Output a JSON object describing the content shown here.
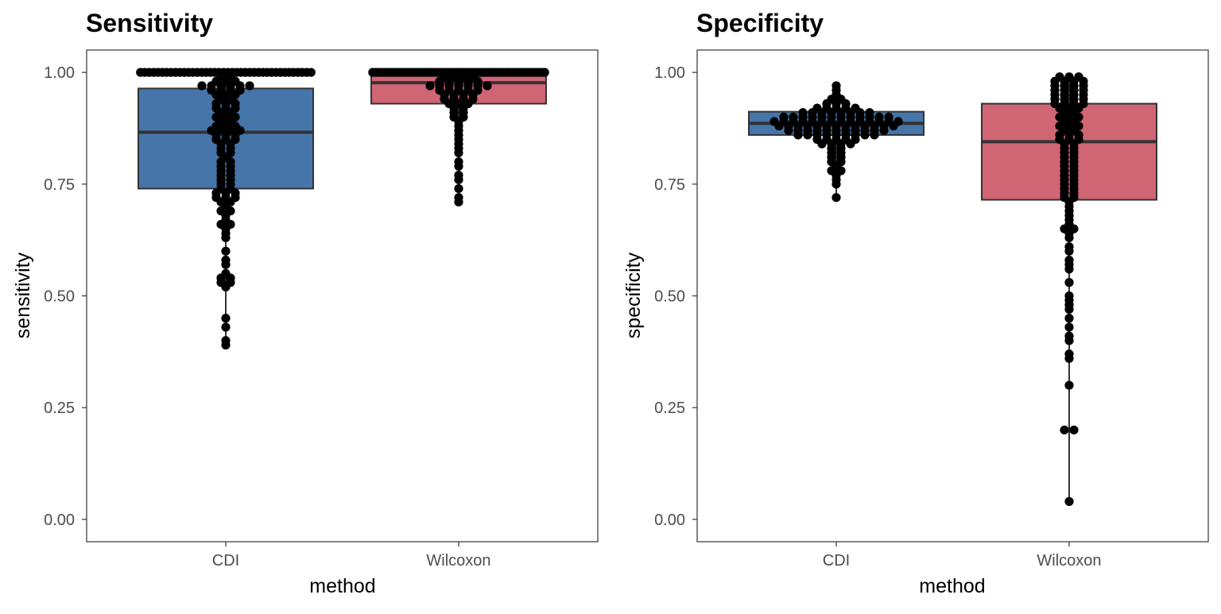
{
  "chart_data": [
    {
      "type": "box",
      "title": "Sensitivity",
      "xlabel": "method",
      "ylabel": "sensitivity",
      "ylim": [
        -0.05,
        1.05
      ],
      "yticks": [
        "0.00",
        "0.25",
        "0.50",
        "0.75",
        "1.00"
      ],
      "ytick_values": [
        0,
        0.25,
        0.5,
        0.75,
        1.0
      ],
      "categories": [
        "CDI",
        "Wilcoxon"
      ],
      "grid": false,
      "series": [
        {
          "category": "CDI",
          "color": "#4575a9",
          "box": {
            "lower_whisker": 0.39,
            "q1": 0.74,
            "median": 0.866,
            "q3": 0.964,
            "upper_whisker": 1.0
          },
          "points": [
            1,
            1,
            1,
            1,
            1,
            1,
            1,
            1,
            1,
            1,
            1,
            1,
            1,
            1,
            1,
            1,
            1,
            1,
            1,
            1,
            1,
            1,
            1,
            1,
            1,
            1,
            1,
            1,
            1,
            1,
            1,
            1,
            1,
            1,
            1,
            1,
            1,
            1,
            1,
            1,
            0.99,
            0.99,
            0.98,
            0.98,
            0.98,
            0.97,
            0.97,
            0.97,
            0.97,
            0.97,
            0.97,
            0.96,
            0.96,
            0.96,
            0.96,
            0.95,
            0.95,
            0.95,
            0.94,
            0.94,
            0.93,
            0.93,
            0.93,
            0.92,
            0.92,
            0.92,
            0.91,
            0.91,
            0.9,
            0.9,
            0.9,
            0.89,
            0.89,
            0.88,
            0.88,
            0.88,
            0.87,
            0.87,
            0.87,
            0.87,
            0.86,
            0.86,
            0.86,
            0.85,
            0.85,
            0.85,
            0.84,
            0.84,
            0.83,
            0.83,
            0.82,
            0.82,
            0.81,
            0.8,
            0.8,
            0.79,
            0.79,
            0.78,
            0.78,
            0.77,
            0.77,
            0.76,
            0.76,
            0.75,
            0.75,
            0.74,
            0.74,
            0.73,
            0.73,
            0.73,
            0.72,
            0.72,
            0.72,
            0.71,
            0.71,
            0.7,
            0.69,
            0.69,
            0.68,
            0.67,
            0.66,
            0.66,
            0.65,
            0.64,
            0.63,
            0.6,
            0.58,
            0.57,
            0.55,
            0.54,
            0.54,
            0.53,
            0.53,
            0.52,
            0.45,
            0.43,
            0.4,
            0.39
          ]
        },
        {
          "category": "Wilcoxon",
          "color": "#d06574",
          "box": {
            "lower_whisker": 0.71,
            "q1": 0.93,
            "median": 0.977,
            "q3": 1.0,
            "upper_whisker": 1.0
          },
          "points": [
            1,
            1,
            1,
            1,
            1,
            1,
            1,
            1,
            1,
            1,
            1,
            1,
            1,
            1,
            1,
            1,
            1,
            1,
            1,
            1,
            1,
            1,
            1,
            1,
            1,
            1,
            1,
            1,
            1,
            1,
            1,
            1,
            1,
            1,
            1,
            1,
            1,
            1,
            1,
            1,
            1,
            1,
            1,
            1,
            1,
            1,
            1,
            1,
            1,
            1,
            1,
            1,
            1,
            1,
            1,
            1,
            1,
            1,
            1,
            1,
            0.99,
            0.99,
            0.99,
            0.99,
            0.98,
            0.98,
            0.98,
            0.98,
            0.98,
            0.97,
            0.97,
            0.97,
            0.97,
            0.97,
            0.97,
            0.97,
            0.96,
            0.96,
            0.96,
            0.96,
            0.96,
            0.95,
            0.95,
            0.95,
            0.95,
            0.94,
            0.94,
            0.94,
            0.94,
            0.93,
            0.93,
            0.93,
            0.92,
            0.92,
            0.91,
            0.91,
            0.9,
            0.9,
            0.89,
            0.88,
            0.87,
            0.86,
            0.85,
            0.84,
            0.83,
            0.82,
            0.8,
            0.79,
            0.77,
            0.76,
            0.74,
            0.72,
            0.71
          ]
        }
      ]
    },
    {
      "type": "box",
      "title": "Specificity",
      "xlabel": "method",
      "ylabel": "specificity",
      "ylim": [
        -0.05,
        1.05
      ],
      "yticks": [
        "0.00",
        "0.25",
        "0.50",
        "0.75",
        "1.00"
      ],
      "ytick_values": [
        0,
        0.25,
        0.5,
        0.75,
        1.0
      ],
      "categories": [
        "CDI",
        "Wilcoxon"
      ],
      "grid": false,
      "series": [
        {
          "category": "CDI",
          "color": "#4575a9",
          "box": {
            "lower_whisker": 0.72,
            "q1": 0.86,
            "median": 0.886,
            "q3": 0.912,
            "upper_whisker": 0.97
          },
          "points": [
            0.97,
            0.96,
            0.95,
            0.94,
            0.94,
            0.93,
            0.93,
            0.93,
            0.92,
            0.92,
            0.92,
            0.92,
            0.92,
            0.91,
            0.91,
            0.91,
            0.91,
            0.91,
            0.91,
            0.91,
            0.91,
            0.9,
            0.9,
            0.9,
            0.9,
            0.9,
            0.9,
            0.9,
            0.9,
            0.9,
            0.9,
            0.9,
            0.9,
            0.89,
            0.89,
            0.89,
            0.89,
            0.89,
            0.89,
            0.89,
            0.89,
            0.89,
            0.89,
            0.89,
            0.89,
            0.89,
            0.89,
            0.88,
            0.88,
            0.88,
            0.88,
            0.88,
            0.88,
            0.88,
            0.88,
            0.88,
            0.88,
            0.88,
            0.88,
            0.88,
            0.87,
            0.87,
            0.87,
            0.87,
            0.87,
            0.87,
            0.87,
            0.87,
            0.87,
            0.87,
            0.87,
            0.86,
            0.86,
            0.86,
            0.86,
            0.86,
            0.86,
            0.86,
            0.86,
            0.86,
            0.85,
            0.85,
            0.85,
            0.85,
            0.85,
            0.84,
            0.84,
            0.84,
            0.84,
            0.83,
            0.83,
            0.82,
            0.82,
            0.81,
            0.81,
            0.8,
            0.8,
            0.79,
            0.78,
            0.78,
            0.77,
            0.76,
            0.75,
            0.72
          ]
        },
        {
          "category": "Wilcoxon",
          "color": "#d06574",
          "box": {
            "lower_whisker": 0.04,
            "q1": 0.715,
            "median": 0.845,
            "q3": 0.93,
            "upper_whisker": 0.99
          },
          "points": [
            0.99,
            0.99,
            0.99,
            0.98,
            0.98,
            0.98,
            0.98,
            0.97,
            0.97,
            0.97,
            0.97,
            0.96,
            0.96,
            0.96,
            0.96,
            0.95,
            0.95,
            0.95,
            0.95,
            0.94,
            0.94,
            0.94,
            0.94,
            0.93,
            0.93,
            0.93,
            0.93,
            0.92,
            0.92,
            0.92,
            0.91,
            0.91,
            0.9,
            0.9,
            0.9,
            0.89,
            0.89,
            0.88,
            0.88,
            0.88,
            0.87,
            0.87,
            0.86,
            0.86,
            0.86,
            0.85,
            0.85,
            0.85,
            0.84,
            0.84,
            0.83,
            0.83,
            0.82,
            0.82,
            0.81,
            0.81,
            0.8,
            0.8,
            0.79,
            0.79,
            0.78,
            0.78,
            0.77,
            0.77,
            0.76,
            0.76,
            0.75,
            0.75,
            0.74,
            0.74,
            0.73,
            0.73,
            0.72,
            0.72,
            0.71,
            0.7,
            0.69,
            0.68,
            0.67,
            0.66,
            0.65,
            0.65,
            0.64,
            0.63,
            0.61,
            0.6,
            0.58,
            0.57,
            0.56,
            0.53,
            0.5,
            0.49,
            0.48,
            0.47,
            0.45,
            0.43,
            0.41,
            0.4,
            0.37,
            0.36,
            0.3,
            0.2,
            0.2,
            0.04
          ]
        }
      ]
    }
  ]
}
